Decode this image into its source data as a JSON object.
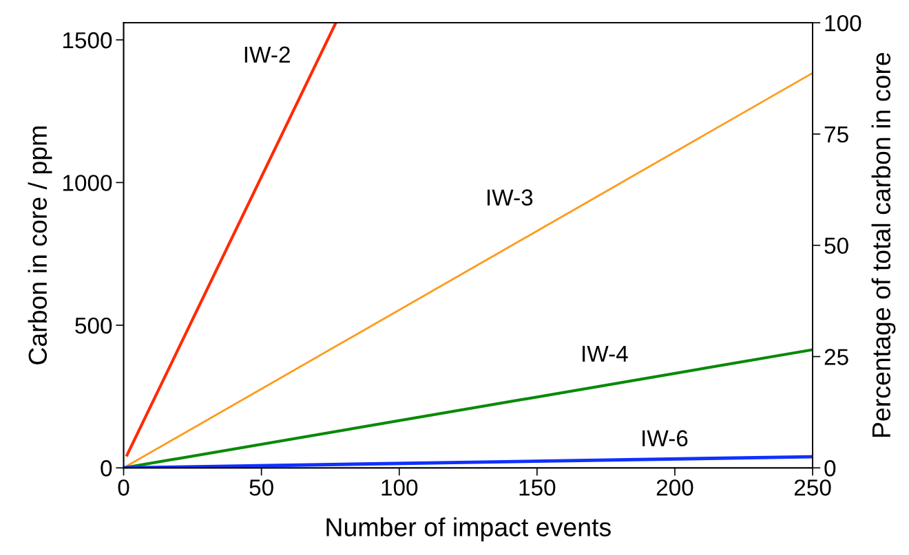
{
  "chart_data": {
    "type": "line",
    "xlabel": "Number of impact events",
    "ylabel": "Carbon in core / ppm",
    "y2label": "Percentage of total carbon in core",
    "xlim": [
      0,
      250
    ],
    "xticks": [
      0,
      50,
      100,
      150,
      200,
      250
    ],
    "ylim": [
      0,
      1560
    ],
    "yticks": [
      0,
      500,
      1000,
      1500
    ],
    "y2lim": [
      0,
      100
    ],
    "y2ticks": [
      0,
      25,
      50,
      75,
      100
    ],
    "grid": false,
    "legend": false,
    "marker": "none",
    "line_style": "solid",
    "series": [
      {
        "name": "IW-2",
        "color": "#ff2a00",
        "x": [
          1,
          77
        ],
        "values": [
          40,
          1560
        ]
      },
      {
        "name": "IW-3",
        "color": "#ff9a1a",
        "x": [
          0,
          250
        ],
        "values": [
          0,
          1384
        ]
      },
      {
        "name": "IW-4",
        "color": "#0a8a0a",
        "x": [
          0,
          250
        ],
        "values": [
          0,
          414
        ]
      },
      {
        "name": "IW-6",
        "color": "#1030ff",
        "x": [
          0,
          250
        ],
        "values": [
          0,
          39
        ]
      }
    ]
  }
}
